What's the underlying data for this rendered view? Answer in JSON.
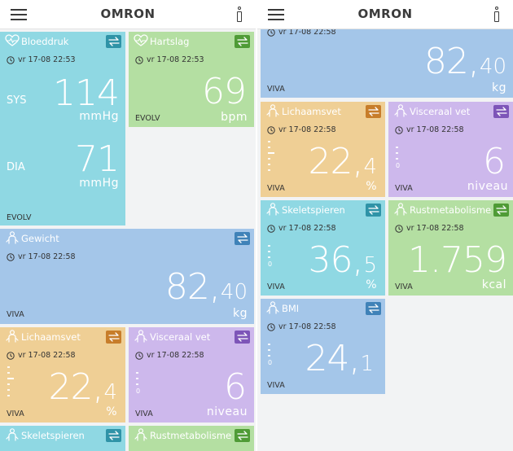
{
  "app": {
    "logo": "OMRON"
  },
  "icons": {
    "menu": "hamburger-icon",
    "info": "info-icon",
    "swap": "swap-arrows-icon",
    "clock": "clock-icon",
    "heart": "heart-icon",
    "person": "person-icon",
    "scale": "body-fat-scale-icon"
  },
  "colors": {
    "blue": "#a4c6e9",
    "teal": "#8fd8e3",
    "green": "#b4dfa2",
    "orange": "#efcf95",
    "purple": "#cdb8ec"
  },
  "left": {
    "bloeddruk": {
      "title": "Bloeddruk",
      "time": "vr 17-08 22:53",
      "sys_label": "SYS",
      "sys_value": "114",
      "sys_unit": "mmHg",
      "dia_label": "DIA",
      "dia_value": "71",
      "dia_unit": "mmHg",
      "device": "EVOLV"
    },
    "hartslag": {
      "title": "Hartslag",
      "time": "vr 17-08 22:53",
      "value": "69",
      "unit": "bpm",
      "device": "EVOLV"
    },
    "gewicht": {
      "title": "Gewicht",
      "time": "vr 17-08 22:58",
      "value_int": "82",
      "value_sep": ",",
      "value_dec": "40",
      "unit": "kg",
      "device": "VIVA"
    },
    "lichaamsvet": {
      "title": "Lichaamsvet",
      "time": "vr 17-08 22:58",
      "value_int": "22",
      "value_sep": ",",
      "value_dec": "4",
      "unit": "%",
      "device": "VIVA"
    },
    "visceraal": {
      "title": "Visceraal vet",
      "time": "vr 17-08 22:58",
      "value": "6",
      "unit": "niveau",
      "scale_zero": "0",
      "device": "VIVA"
    },
    "skeletspieren": {
      "title": "Skeletspieren"
    },
    "rustmetabolisme": {
      "title": "Rustmetabolisme"
    }
  },
  "right": {
    "gewicht": {
      "time": "vr 17-08 22:58",
      "value_int": "82",
      "value_sep": ",",
      "value_dec": "40",
      "unit": "kg",
      "device": "VIVA"
    },
    "lichaamsvet": {
      "title": "Lichaamsvet",
      "time": "vr 17-08 22:58",
      "value_int": "22",
      "value_sep": ",",
      "value_dec": "4",
      "unit": "%",
      "device": "VIVA"
    },
    "visceraal": {
      "title": "Visceraal vet",
      "time": "vr 17-08 22:58",
      "value": "6",
      "unit": "niveau",
      "scale_zero": "0",
      "device": "VIVA"
    },
    "skeletspieren": {
      "title": "Skeletspieren",
      "time": "vr 17-08 22:58",
      "value_int": "36",
      "value_sep": ",",
      "value_dec": "5",
      "unit": "%",
      "scale_zero": "0",
      "device": "VIVA"
    },
    "rustmetabolisme": {
      "title": "Rustmetabolisme",
      "time": "vr 17-08 22:58",
      "value": "1.759",
      "unit": "kcal",
      "device": "VIVA"
    },
    "bmi": {
      "title": "BMI",
      "time": "vr 17-08 22:58",
      "value_int": "24",
      "value_sep": ",",
      "value_dec": "1",
      "scale_zero": "0",
      "device": "VIVA"
    }
  }
}
